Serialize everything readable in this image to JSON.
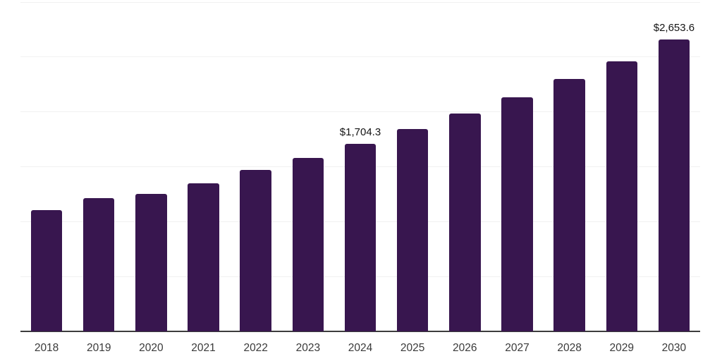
{
  "chart_data": {
    "type": "bar",
    "title": "",
    "xlabel": "",
    "ylabel": "",
    "categories": [
      "2018",
      "2019",
      "2020",
      "2021",
      "2022",
      "2023",
      "2024",
      "2025",
      "2026",
      "2027",
      "2028",
      "2029",
      "2030"
    ],
    "values": [
      1105,
      1215,
      1250,
      1350,
      1470,
      1580,
      1704.3,
      1840,
      1985,
      2130,
      2295,
      2460,
      2653.6
    ],
    "ylim": [
      0,
      3000
    ],
    "grid_step": 500,
    "grid": true,
    "legend": false,
    "y_axis_labels_visible": false,
    "data_labels": [
      {
        "category": "2024",
        "text": "$1,704.3"
      },
      {
        "category": "2030",
        "text": "$2,653.6"
      }
    ],
    "colors": {
      "bar": "#38164f",
      "gridline": "#f1f1f1",
      "axis_line": "#3d3d3d",
      "value_label": "#141414",
      "tick_label": "#3a3a3a",
      "background": "#ffffff"
    }
  }
}
